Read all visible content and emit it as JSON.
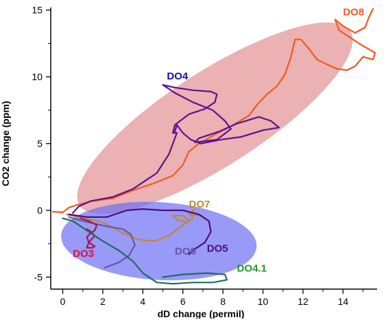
{
  "chart_data": {
    "type": "line",
    "title": "",
    "xlabel": "dD change (permil)",
    "ylabel": "CO2 change (ppm)",
    "xlim": [
      -0.6,
      15.7
    ],
    "ylim": [
      -5.9,
      15.5
    ],
    "x_ticks": [
      0,
      2,
      4,
      6,
      8,
      10,
      12,
      14
    ],
    "y_ticks": [
      -5,
      0,
      5,
      10,
      15
    ],
    "grid": false,
    "legend": "none (series labeled inline)",
    "regions": [
      {
        "name": "upper ellipse",
        "color": "#de7d80",
        "opacity": 0.6,
        "center": [
          7.6,
          6.9
        ],
        "semi_major": 9.4,
        "semi_minor": 2.8,
        "angle_deg": 44
      },
      {
        "name": "lower ellipse",
        "color": "#6e6ef5",
        "opacity": 0.7,
        "center": [
          4.8,
          -2.3
        ],
        "semi_major": 4.9,
        "semi_minor": 2.9,
        "angle_deg": -5
      }
    ],
    "series": [
      {
        "name": "DO8",
        "color": "#f05a1e",
        "label_at": [
          14.0,
          14.6
        ],
        "points": [
          [
            -0.5,
            -0.1
          ],
          [
            0,
            -0.15
          ],
          [
            0.3,
            0.2
          ],
          [
            0.7,
            0.4
          ],
          [
            1.5,
            0.7
          ],
          [
            2.5,
            0.9
          ],
          [
            3.5,
            1.5
          ],
          [
            4.5,
            2.0
          ],
          [
            5.5,
            2.6
          ],
          [
            6.0,
            3.4
          ],
          [
            6.3,
            4.4
          ],
          [
            6.8,
            5.0
          ],
          [
            7.5,
            5.6
          ],
          [
            8.4,
            6.3
          ],
          [
            9.3,
            7.1
          ],
          [
            9.7,
            7.9
          ],
          [
            10.2,
            8.7
          ],
          [
            10.7,
            9.3
          ],
          [
            11.1,
            10.2
          ],
          [
            11.4,
            11.5
          ],
          [
            11.6,
            12.8
          ],
          [
            11.9,
            12.8
          ],
          [
            12.3,
            12.1
          ],
          [
            12.7,
            11.3
          ],
          [
            13.1,
            11.0
          ],
          [
            13.7,
            10.6
          ],
          [
            14.2,
            10.5
          ],
          [
            14.6,
            10.8
          ],
          [
            15.0,
            11.5
          ],
          [
            15.5,
            11.3
          ],
          [
            15.6,
            11.8
          ],
          [
            14.8,
            12.5
          ],
          [
            14.3,
            13.0
          ],
          [
            13.8,
            13.5
          ],
          [
            13.6,
            14.3
          ],
          [
            14.0,
            13.8
          ],
          [
            14.6,
            13.3
          ],
          [
            15.1,
            13.7
          ],
          [
            15.3,
            14.5
          ],
          [
            15.5,
            15.1
          ]
        ]
      },
      {
        "name": "DO4",
        "color": "#5a1290",
        "label_at": [
          5.2,
          9.8
        ],
        "points": [
          [
            0.5,
            -0.2
          ],
          [
            0.8,
            0.3
          ],
          [
            1.4,
            0.7
          ],
          [
            2.5,
            1.0
          ],
          [
            3.5,
            1.6
          ],
          [
            4.7,
            2.8
          ],
          [
            5.3,
            4.2
          ],
          [
            5.7,
            5.8
          ],
          [
            5.5,
            5.8
          ],
          [
            5.6,
            6.4
          ],
          [
            6.3,
            7.2
          ],
          [
            7.1,
            7.6
          ],
          [
            7.6,
            8.1
          ],
          [
            7.7,
            8.7
          ],
          [
            7.4,
            8.9
          ],
          [
            6.5,
            9.0
          ],
          [
            5.6,
            9.2
          ],
          [
            5.0,
            9.4
          ],
          [
            5.6,
            8.8
          ],
          [
            6.5,
            8.1
          ],
          [
            7.5,
            7.5
          ],
          [
            8.1,
            6.7
          ],
          [
            8.4,
            6.1
          ],
          [
            7.7,
            5.3
          ],
          [
            6.6,
            5.1
          ],
          [
            6.8,
            5.4
          ],
          [
            7.8,
            5.9
          ],
          [
            8.7,
            6.5
          ],
          [
            9.8,
            7.0
          ],
          [
            10.4,
            6.7
          ],
          [
            10.8,
            6.2
          ],
          [
            10.0,
            6.0
          ],
          [
            8.9,
            5.5
          ],
          [
            7.9,
            5.3
          ],
          [
            6.9,
            5.0
          ],
          [
            6.4,
            5.3
          ],
          [
            6.0,
            5.8
          ],
          [
            5.7,
            6.4
          ],
          [
            5.6,
            5.9
          ]
        ]
      },
      {
        "name": "DO7",
        "color": "#c4862e",
        "label_at": [
          6.3,
          0.2
        ],
        "points": [
          [
            0.2,
            -0.3
          ],
          [
            1.0,
            -0.6
          ],
          [
            2.0,
            -0.9
          ],
          [
            3.0,
            -1.7
          ],
          [
            3.8,
            -2.2
          ],
          [
            4.6,
            -2.3
          ],
          [
            5.3,
            -1.9
          ],
          [
            5.9,
            -1.2
          ],
          [
            6.3,
            -0.8
          ],
          [
            6.0,
            -0.4
          ],
          [
            5.5,
            -0.4
          ],
          [
            5.7,
            -0.7
          ],
          [
            6.2,
            -0.9
          ],
          [
            6.5,
            -0.6
          ],
          [
            6.4,
            -0.2
          ],
          [
            6.6,
            0.1
          ],
          [
            6.3,
            -0.3
          ],
          [
            6.8,
            -0.4
          ]
        ]
      },
      {
        "name": "DO5",
        "color": "#4e0b80",
        "label_at": [
          7.2,
          -3.1
        ],
        "points": [
          [
            0.3,
            -0.3
          ],
          [
            1.2,
            -0.5
          ],
          [
            2.2,
            -0.5
          ],
          [
            3.2,
            0.0
          ],
          [
            4.0,
            0.1
          ],
          [
            5.0,
            0.0
          ],
          [
            6.0,
            0.0
          ],
          [
            6.8,
            -0.3
          ],
          [
            7.3,
            -0.8
          ],
          [
            7.4,
            -1.6
          ],
          [
            7.1,
            -2.4
          ],
          [
            6.6,
            -2.9
          ],
          [
            6.3,
            -3.3
          ]
        ]
      },
      {
        "name": "DO6",
        "color": "#5d5aa4",
        "label_at": [
          5.6,
          -3.3
        ],
        "points": [
          [
            0.3,
            -0.5
          ],
          [
            1.0,
            -0.8
          ],
          [
            2.2,
            -1.2
          ],
          [
            3.0,
            -1.4
          ],
          [
            3.4,
            -1.8
          ],
          [
            3.6,
            -2.6
          ],
          [
            3.3,
            -3.4
          ],
          [
            2.8,
            -3.9
          ],
          [
            2.1,
            -4.3
          ]
        ]
      },
      {
        "name": "DO3",
        "color": "#a1194d",
        "label_at": [
          0.5,
          -3.5
        ],
        "points": [
          [
            0.9,
            -0.6
          ],
          [
            1.3,
            -0.8
          ],
          [
            1.7,
            -1.1
          ],
          [
            1.6,
            -1.5
          ],
          [
            1.4,
            -1.7
          ],
          [
            1.2,
            -2.0
          ],
          [
            1.3,
            -2.4
          ],
          [
            1.6,
            -2.7
          ],
          [
            1.5,
            -2.8
          ],
          [
            1.2,
            -2.8
          ],
          [
            1.3,
            -2.4
          ],
          [
            1.6,
            -1.9
          ],
          [
            1.4,
            -1.6
          ],
          [
            1.2,
            -1.4
          ]
        ]
      },
      {
        "name": "DO4.1",
        "color": "#1c6e5c",
        "label_at": [
          8.7,
          -4.6
        ],
        "points": [
          [
            0.0,
            -0.6
          ],
          [
            0.5,
            -0.8
          ],
          [
            1.2,
            -1.5
          ],
          [
            2.0,
            -2.3
          ],
          [
            2.8,
            -3.0
          ],
          [
            3.5,
            -3.8
          ],
          [
            4.0,
            -4.7
          ],
          [
            4.7,
            -5.4
          ],
          [
            5.5,
            -5.5
          ],
          [
            6.5,
            -5.4
          ],
          [
            7.5,
            -5.4
          ],
          [
            8.2,
            -5.2
          ],
          [
            8.1,
            -4.8
          ],
          [
            7.2,
            -4.7
          ],
          [
            6.0,
            -4.8
          ],
          [
            5.0,
            -5.0
          ]
        ]
      }
    ]
  }
}
